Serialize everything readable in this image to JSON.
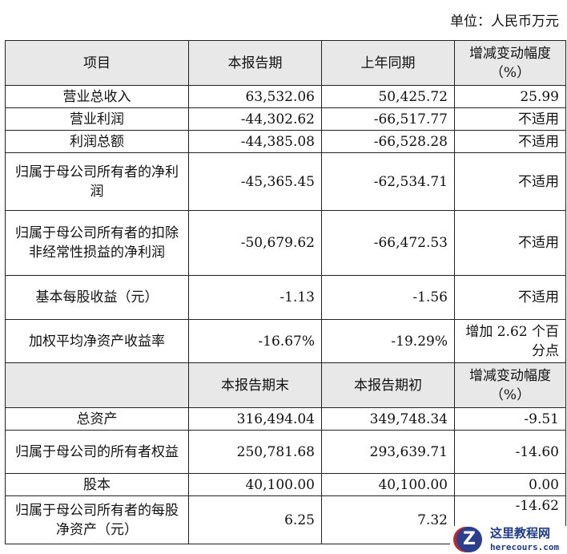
{
  "unit": "单位：人民币万元",
  "header1": [
    "项目",
    "本报告期",
    "上年同期",
    "增减变动幅度（%）"
  ],
  "rows1": [
    {
      "item": "营业总收入",
      "cur": "63,532.06",
      "prev": "50,425.72",
      "chg": "25.99"
    },
    {
      "item": "营业利润",
      "cur": "-44,302.62",
      "prev": "-66,517.77",
      "chg": "不适用"
    },
    {
      "item": "利润总额",
      "cur": "-44,385.08",
      "prev": "-66,528.28",
      "chg": "不适用"
    },
    {
      "item": "归属于母公司所有者的净利润",
      "cur": "-45,365.45",
      "prev": "-62,534.71",
      "chg": "不适用"
    },
    {
      "item": "归属于母公司所有者的扣除非经常性损益的净利润",
      "cur": "-50,679.62",
      "prev": "-66,472.53",
      "chg": "不适用"
    },
    {
      "item": "基本每股收益（元）",
      "cur": "-1.13",
      "prev": "-1.56",
      "chg": "不适用"
    },
    {
      "item": "加权平均净资产收益率",
      "cur": "-16.67%",
      "prev": "-19.29%",
      "chg": "增加 2.62 个百分点"
    }
  ],
  "header2": [
    "",
    "本报告期末",
    "本报告期初",
    "增减变动幅度（%）"
  ],
  "rows2": [
    {
      "item": "总资产",
      "cur": "316,494.04",
      "prev": "349,748.34",
      "chg": "-9.51"
    },
    {
      "item": "归属于母公司的所有者权益",
      "cur": "250,781.68",
      "prev": "293,639.71",
      "chg": "-14.60"
    },
    {
      "item": "股本",
      "cur": "40,100.00",
      "prev": "40,100.00",
      "chg": "0.00"
    },
    {
      "item": "归属于母公司所有者的每股净资产（元）",
      "cur": "6.25",
      "prev": "7.32",
      "chg": "-14.62"
    }
  ],
  "watermark": {
    "title": "这里教程网",
    "url": "herecours.com"
  }
}
